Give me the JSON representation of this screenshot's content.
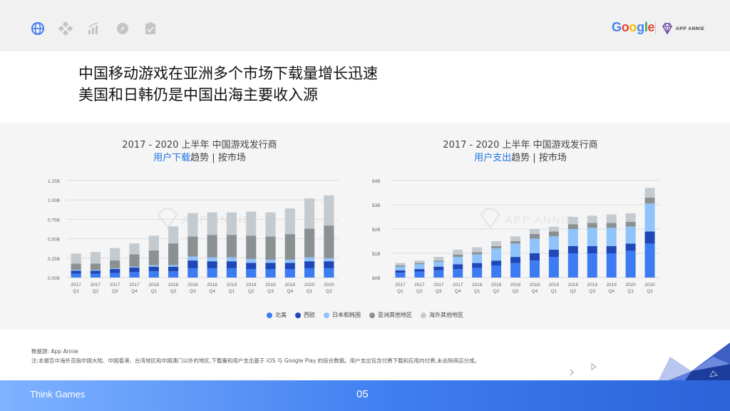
{
  "header": {
    "brand_google": "Google",
    "brand_appannie": "APP ANNIE",
    "nav_icons": [
      "globe-icon",
      "diamond-grid-icon",
      "growth-chart-icon",
      "compass-icon",
      "checklist-icon"
    ]
  },
  "headline": {
    "line1": "中国移动游戏在亚洲多个市场下载量增长迅速",
    "line2": "美国和日韩仍是中国出海主要收入源"
  },
  "watermark": "APP ANNIE",
  "legend": [
    {
      "name": "北美",
      "color": "#3d7bf2"
    },
    {
      "name": "西欧",
      "color": "#1f47b8"
    },
    {
      "name": "日本和韩国",
      "color": "#8fc3fb"
    },
    {
      "name": "亚洲其他地区",
      "color": "#8b9193"
    },
    {
      "name": "海外其他地区",
      "color": "#c3cbd1"
    }
  ],
  "chart_data": [
    {
      "type": "bar",
      "stacked": true,
      "title": "2017 - 2020 上半年 中国游戏发行商",
      "subtitle_hl": "用户下载",
      "subtitle_rest": "趋势 | 按市场",
      "categories": [
        "2017 Q1",
        "2017 Q2",
        "2017 Q3",
        "2017 Q4",
        "2018 Q1",
        "2018 Q2",
        "2018 Q3",
        "2018 Q4",
        "2019 Q1",
        "2019 Q2",
        "2019 Q3",
        "2019 Q4",
        "2020 Q1",
        "2020 Q2"
      ],
      "ylim": [
        0,
        1.25
      ],
      "yticks": [
        0,
        0.25,
        0.5,
        0.75,
        1.0,
        1.25
      ],
      "ytick_labels": [
        "0.00B",
        "0.25B",
        "0.50B",
        "0.75B",
        "1.00B",
        "1.25B"
      ],
      "grid": true,
      "series": [
        {
          "name": "北美",
          "values": [
            0.05,
            0.05,
            0.06,
            0.07,
            0.08,
            0.08,
            0.12,
            0.12,
            0.12,
            0.11,
            0.11,
            0.11,
            0.12,
            0.12
          ]
        },
        {
          "name": "西欧",
          "values": [
            0.04,
            0.04,
            0.05,
            0.06,
            0.06,
            0.06,
            0.1,
            0.09,
            0.09,
            0.08,
            0.08,
            0.08,
            0.09,
            0.09
          ]
        },
        {
          "name": "日本和韩国",
          "values": [
            0.01,
            0.01,
            0.01,
            0.01,
            0.02,
            0.02,
            0.05,
            0.05,
            0.05,
            0.05,
            0.04,
            0.04,
            0.05,
            0.04
          ]
        },
        {
          "name": "亚洲其他地区",
          "values": [
            0.08,
            0.08,
            0.1,
            0.16,
            0.19,
            0.28,
            0.26,
            0.29,
            0.29,
            0.3,
            0.3,
            0.33,
            0.37,
            0.42
          ]
        },
        {
          "name": "海外其他地区",
          "values": [
            0.13,
            0.15,
            0.16,
            0.14,
            0.19,
            0.22,
            0.3,
            0.29,
            0.29,
            0.31,
            0.31,
            0.33,
            0.39,
            0.39
          ]
        }
      ]
    },
    {
      "type": "bar",
      "stacked": true,
      "title": "2017 - 2020 上半年 中国游戏发行商",
      "subtitle_hl": "用户支出",
      "subtitle_rest": "趋势 | 按市场",
      "categories": [
        "2017 Q1",
        "2017 Q2",
        "2017 Q3",
        "2017 Q4",
        "2018 Q1",
        "2018 Q2",
        "2018 Q3",
        "2018 Q4",
        "2019 Q1",
        "2019 Q2",
        "2019 Q3",
        "2019 Q4",
        "2020 Q1",
        "2020 Q2"
      ],
      "ylim": [
        0,
        4
      ],
      "yticks": [
        0,
        1,
        2,
        3,
        4
      ],
      "ytick_labels": [
        "$0B",
        "$1B",
        "$2B",
        "$3B",
        "$4B"
      ],
      "grid": true,
      "series": [
        {
          "name": "北美",
          "values": [
            0.2,
            0.25,
            0.3,
            0.35,
            0.4,
            0.5,
            0.6,
            0.7,
            0.85,
            1.0,
            1.0,
            1.0,
            1.1,
            1.4
          ]
        },
        {
          "name": "西欧",
          "values": [
            0.1,
            0.1,
            0.15,
            0.2,
            0.2,
            0.2,
            0.25,
            0.3,
            0.3,
            0.3,
            0.3,
            0.3,
            0.3,
            0.5
          ]
        },
        {
          "name": "日本和韩国",
          "values": [
            0.15,
            0.2,
            0.2,
            0.3,
            0.35,
            0.5,
            0.55,
            0.6,
            0.55,
            0.7,
            0.75,
            0.75,
            0.7,
            1.15
          ]
        },
        {
          "name": "亚洲其他地区",
          "values": [
            0.05,
            0.05,
            0.05,
            0.1,
            0.1,
            0.1,
            0.1,
            0.2,
            0.2,
            0.2,
            0.2,
            0.2,
            0.2,
            0.25
          ]
        },
        {
          "name": "海外其他地区",
          "values": [
            0.1,
            0.1,
            0.15,
            0.2,
            0.2,
            0.2,
            0.2,
            0.2,
            0.2,
            0.3,
            0.3,
            0.35,
            0.35,
            0.4
          ]
        }
      ]
    }
  ],
  "notes": {
    "source": "数据源: App Annie",
    "footnote": "注:本报告中海外范指中国大陆、中国香港、台湾地区和中国澳门以外的地区,下载量和用户支出基于 iOS 与 Google Play 的综合数据。用户支出包含付费下载和应用内付费,未去除商店分成。"
  },
  "footer": {
    "left": "Think Games",
    "page": "05"
  }
}
